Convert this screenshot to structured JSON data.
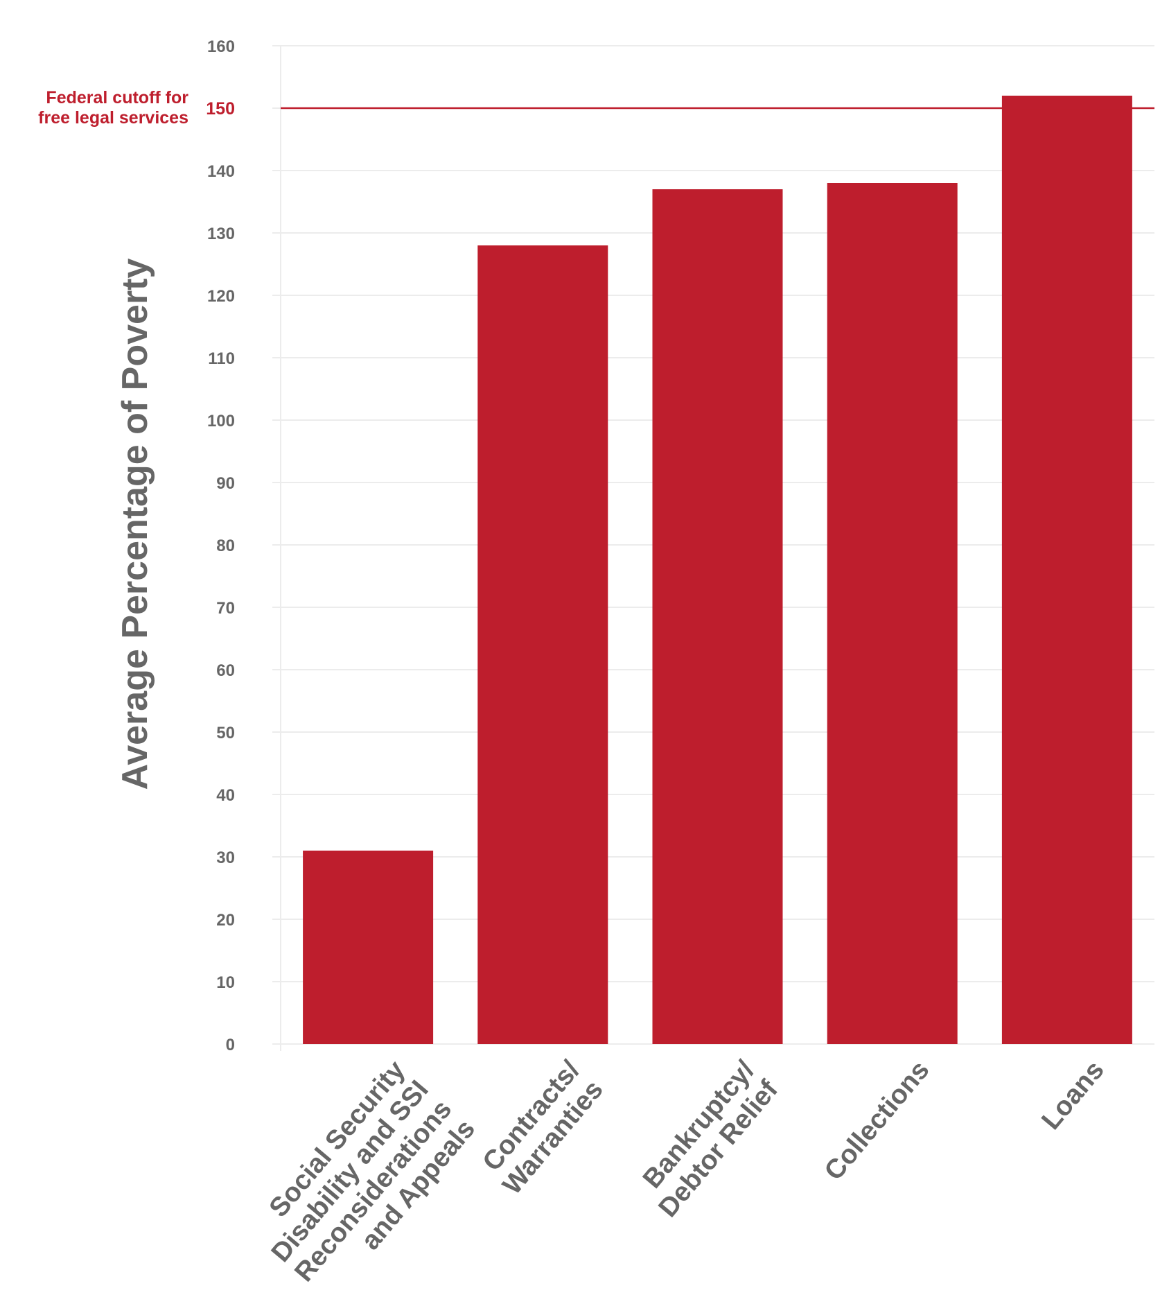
{
  "chart_data": {
    "type": "bar",
    "categories": [
      [
        "Social Security",
        "Disability and SSI",
        "Reconsiderations",
        "and Appeals"
      ],
      [
        "Contracts/",
        "Warranties"
      ],
      [
        "Bankruptcy/",
        "Debtor Relief"
      ],
      [
        "Collections"
      ],
      [
        "Loans"
      ]
    ],
    "values": [
      31,
      128,
      137,
      138,
      152
    ],
    "title": "",
    "xlabel": "",
    "ylabel": "Average Percentage of Poverty",
    "ylim": [
      0,
      160
    ],
    "yticks": [
      0,
      10,
      20,
      30,
      40,
      50,
      60,
      70,
      80,
      90,
      100,
      110,
      120,
      130,
      140,
      150,
      160
    ],
    "highlight_tick": 150,
    "grid": true,
    "bar_color": "#be1e2d",
    "reference_line": {
      "value": 150,
      "label": [
        "Federal cutoff for",
        "free legal services"
      ],
      "color": "#be1e2d"
    }
  }
}
